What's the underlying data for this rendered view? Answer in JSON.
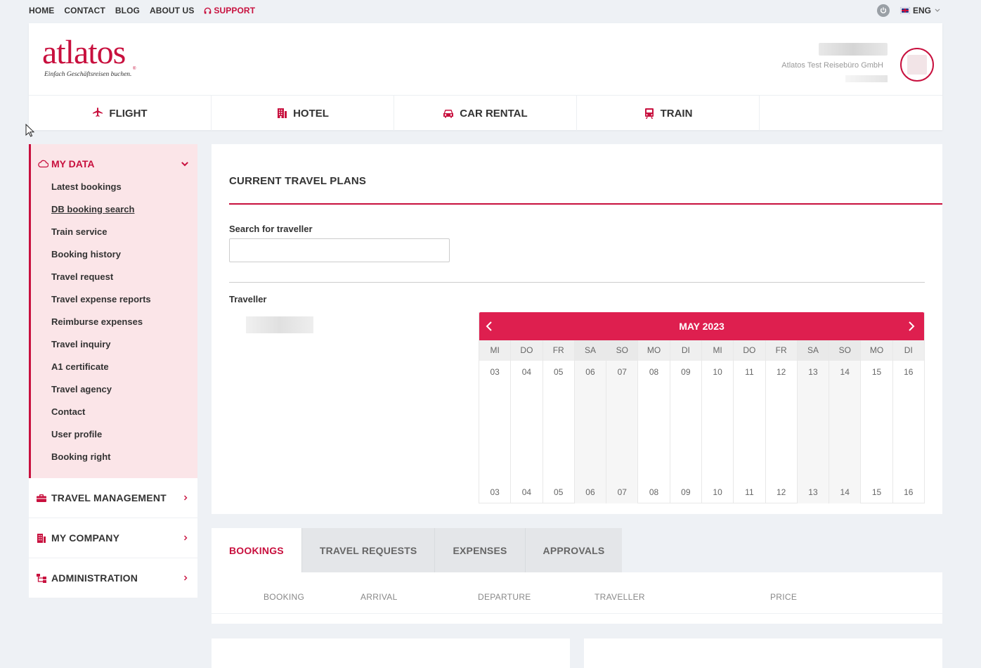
{
  "topnav": {
    "items": [
      "HOME",
      "CONTACT",
      "BLOG",
      "ABOUT US"
    ],
    "support": "SUPPORT",
    "language": "ENG"
  },
  "header": {
    "logo_text": "atlatos",
    "logo_tagline": "Einfach Geschäftsreisen buchen.",
    "company_name": "Atlatos Test Reisebüro GmbH"
  },
  "main_tabs": [
    {
      "label": "FLIGHT",
      "icon": "plane-icon"
    },
    {
      "label": "HOTEL",
      "icon": "building-icon"
    },
    {
      "label": "CAR RENTAL",
      "icon": "car-icon"
    },
    {
      "label": "TRAIN",
      "icon": "train-icon"
    }
  ],
  "sidebar": {
    "my_data": {
      "title": "MY DATA",
      "items": [
        "Latest bookings",
        "DB booking search",
        "Train service",
        "Booking history",
        "Travel request",
        "Travel expense reports",
        "Reimburse expenses",
        "Travel inquiry",
        "A1 certificate",
        "Travel agency",
        "Contact",
        "User profile",
        "Booking right"
      ]
    },
    "sections": [
      "TRAVEL MANAGEMENT",
      "MY COMPANY",
      "ADMINISTRATION"
    ]
  },
  "panel": {
    "title": "CURRENT TRAVEL PLANS",
    "search_label": "Search for traveller",
    "search_value": "",
    "traveller_label": "Traveller"
  },
  "calendar": {
    "month": "MAY 2023",
    "days": [
      {
        "dow": "MI",
        "date": "03"
      },
      {
        "dow": "DO",
        "date": "04"
      },
      {
        "dow": "FR",
        "date": "05"
      },
      {
        "dow": "SA",
        "date": "06"
      },
      {
        "dow": "SO",
        "date": "07"
      },
      {
        "dow": "MO",
        "date": "08"
      },
      {
        "dow": "DI",
        "date": "09"
      },
      {
        "dow": "MI",
        "date": "10"
      },
      {
        "dow": "DO",
        "date": "11"
      },
      {
        "dow": "FR",
        "date": "12"
      },
      {
        "dow": "SA",
        "date": "13"
      },
      {
        "dow": "SO",
        "date": "14"
      },
      {
        "dow": "MO",
        "date": "15"
      },
      {
        "dow": "DI",
        "date": "16"
      }
    ]
  },
  "bottom_tabs": [
    "BOOKINGS",
    "TRAVEL REQUESTS",
    "EXPENSES",
    "APPROVALS"
  ],
  "bookings_columns": [
    "BOOKING",
    "ARRIVAL",
    "DEPARTURE",
    "TRAVELLER",
    "PRICE"
  ],
  "colors": {
    "accent": "#c8103e",
    "calendar_header": "#de1f4f",
    "sidebar_active_bg": "#fbe5e8",
    "page_bg": "#eef1f5"
  }
}
